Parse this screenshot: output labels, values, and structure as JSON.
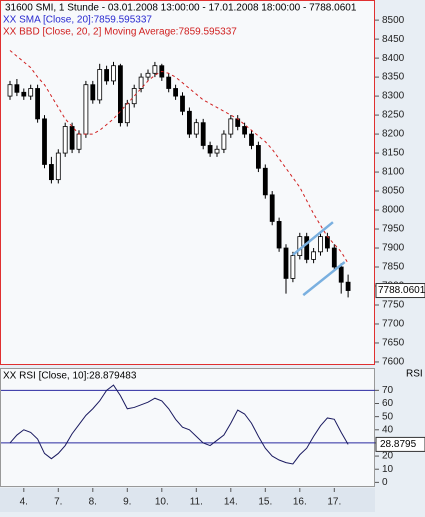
{
  "chart_data": [
    {
      "type": "candlestick",
      "title": "31600  SMI, 1 Stunde - 03.01.2008 13:00:00 - 17.01.2008 18:00:00 - 7788.0601",
      "legend": [
        "XX SMA [Close, 20]:7859.595337",
        "XX BBD [Close, 20, 2] Moving Average:7859.595337"
      ],
      "legend_colors": [
        "#2a2ad0",
        "#d02020"
      ],
      "open": [
        8300,
        8330,
        8310,
        8300,
        8320,
        8240,
        8120,
        8080,
        8150,
        8220,
        8160,
        8200,
        8330,
        8290,
        8370,
        8340,
        8380,
        8230,
        8280,
        8320,
        8350,
        8360,
        8380,
        8350,
        8320,
        8300,
        8260,
        8200,
        8230,
        8170,
        8150,
        8160,
        8200,
        8240,
        8220,
        8200,
        8170,
        8110,
        8040,
        7970,
        7900,
        7820,
        7880,
        7930,
        7870,
        7890,
        7930,
        7900,
        7850,
        7810
      ],
      "high": [
        8340,
        8345,
        8320,
        8330,
        8330,
        8250,
        8140,
        8160,
        8230,
        8230,
        8210,
        8340,
        8340,
        8385,
        8380,
        8390,
        8385,
        8290,
        8330,
        8360,
        8370,
        8390,
        8385,
        8360,
        8330,
        8310,
        8270,
        8240,
        8240,
        8180,
        8170,
        8210,
        8250,
        8250,
        8230,
        8210,
        8180,
        8120,
        8050,
        7980,
        7910,
        7890,
        7940,
        7940,
        7900,
        7940,
        7940,
        7910,
        7860,
        7830
      ],
      "low": [
        8290,
        8300,
        8290,
        8290,
        8230,
        8110,
        8070,
        8070,
        8140,
        8150,
        8150,
        8190,
        8280,
        8280,
        8330,
        8330,
        8220,
        8220,
        8270,
        8310,
        8340,
        8350,
        8340,
        8310,
        8290,
        8250,
        8190,
        8190,
        8160,
        8140,
        8140,
        8150,
        8190,
        8210,
        8190,
        8160,
        8100,
        8030,
        7960,
        7890,
        7780,
        7810,
        7870,
        7860,
        7860,
        7880,
        7890,
        7840,
        7780,
        7770
      ],
      "close": [
        8330,
        8310,
        8300,
        8320,
        8240,
        8120,
        8080,
        8150,
        8220,
        8160,
        8200,
        8330,
        8290,
        8370,
        8340,
        8380,
        8230,
        8280,
        8320,
        8350,
        8360,
        8380,
        8350,
        8320,
        8300,
        8260,
        8200,
        8230,
        8170,
        8150,
        8160,
        8200,
        8240,
        8220,
        8200,
        8170,
        8110,
        8040,
        7970,
        7900,
        7820,
        7880,
        7930,
        7870,
        7890,
        7930,
        7900,
        7850,
        7810,
        7788.0601
      ],
      "close_label": "7788.0601",
      "candle_color": "#000000",
      "average": {
        "color": "#d02020",
        "values": [
          8420,
          8405,
          8390,
          8375,
          8350,
          8330,
          8300,
          8270,
          8240,
          8220,
          8200,
          8200,
          8200,
          8210,
          8225,
          8240,
          8260,
          8280,
          8300,
          8320,
          8340,
          8355,
          8365,
          8360,
          8350,
          8335,
          8320,
          8305,
          8290,
          8280,
          8270,
          8260,
          8250,
          8240,
          8225,
          8210,
          8195,
          8180,
          8160,
          8135,
          8110,
          8085,
          8060,
          8025,
          7990,
          7960,
          7930,
          7910,
          7890,
          7859.595337
        ]
      },
      "trendlines": [
        {
          "x": [
            41,
            46.8
          ],
          "y": [
            7882,
            7968
          ]
        },
        {
          "x": [
            42.5,
            48.5
          ],
          "y": [
            7776,
            7863
          ]
        }
      ],
      "trendline_color": "#7ab0e0",
      "ylim": [
        7592,
        8553
      ],
      "yticks": [
        7600,
        7650,
        7700,
        7750,
        7800,
        7850,
        7900,
        7950,
        8000,
        8050,
        8100,
        8150,
        8200,
        8250,
        8300,
        8350,
        8400,
        8450,
        8500
      ]
    },
    {
      "type": "line",
      "title": "XX RSI [Close, 10]:28.879483",
      "axis_title": "RSI",
      "values": [
        30,
        36,
        40,
        38,
        33,
        22,
        18,
        22,
        28,
        37,
        44,
        51,
        56,
        62,
        70,
        74,
        66,
        56,
        57,
        59,
        61,
        64,
        62,
        56,
        48,
        42,
        40,
        35,
        30,
        28,
        32,
        36,
        45,
        55,
        52,
        45,
        35,
        26,
        20,
        17,
        15,
        14,
        21,
        26,
        35,
        43,
        49,
        48,
        38,
        28.879483
      ],
      "last_label": "28.8795",
      "color": "#1a1a60",
      "levels": [
        70,
        30
      ],
      "level_color": "#2a2aa0",
      "ylim": [
        -2,
        87
      ],
      "yticks": [
        0,
        10,
        20,
        30,
        40,
        50,
        60,
        70
      ],
      "xticks": [
        {
          "value": 2,
          "label": "4."
        },
        {
          "value": 7,
          "label": "7."
        },
        {
          "value": 12,
          "label": "8."
        },
        {
          "value": 17,
          "label": "9."
        },
        {
          "value": 22,
          "label": "10."
        },
        {
          "value": 27,
          "label": "11."
        },
        {
          "value": 32,
          "label": "14."
        },
        {
          "value": 37,
          "label": "15."
        },
        {
          "value": 42,
          "label": "16."
        },
        {
          "value": 47,
          "label": "17."
        }
      ]
    }
  ]
}
